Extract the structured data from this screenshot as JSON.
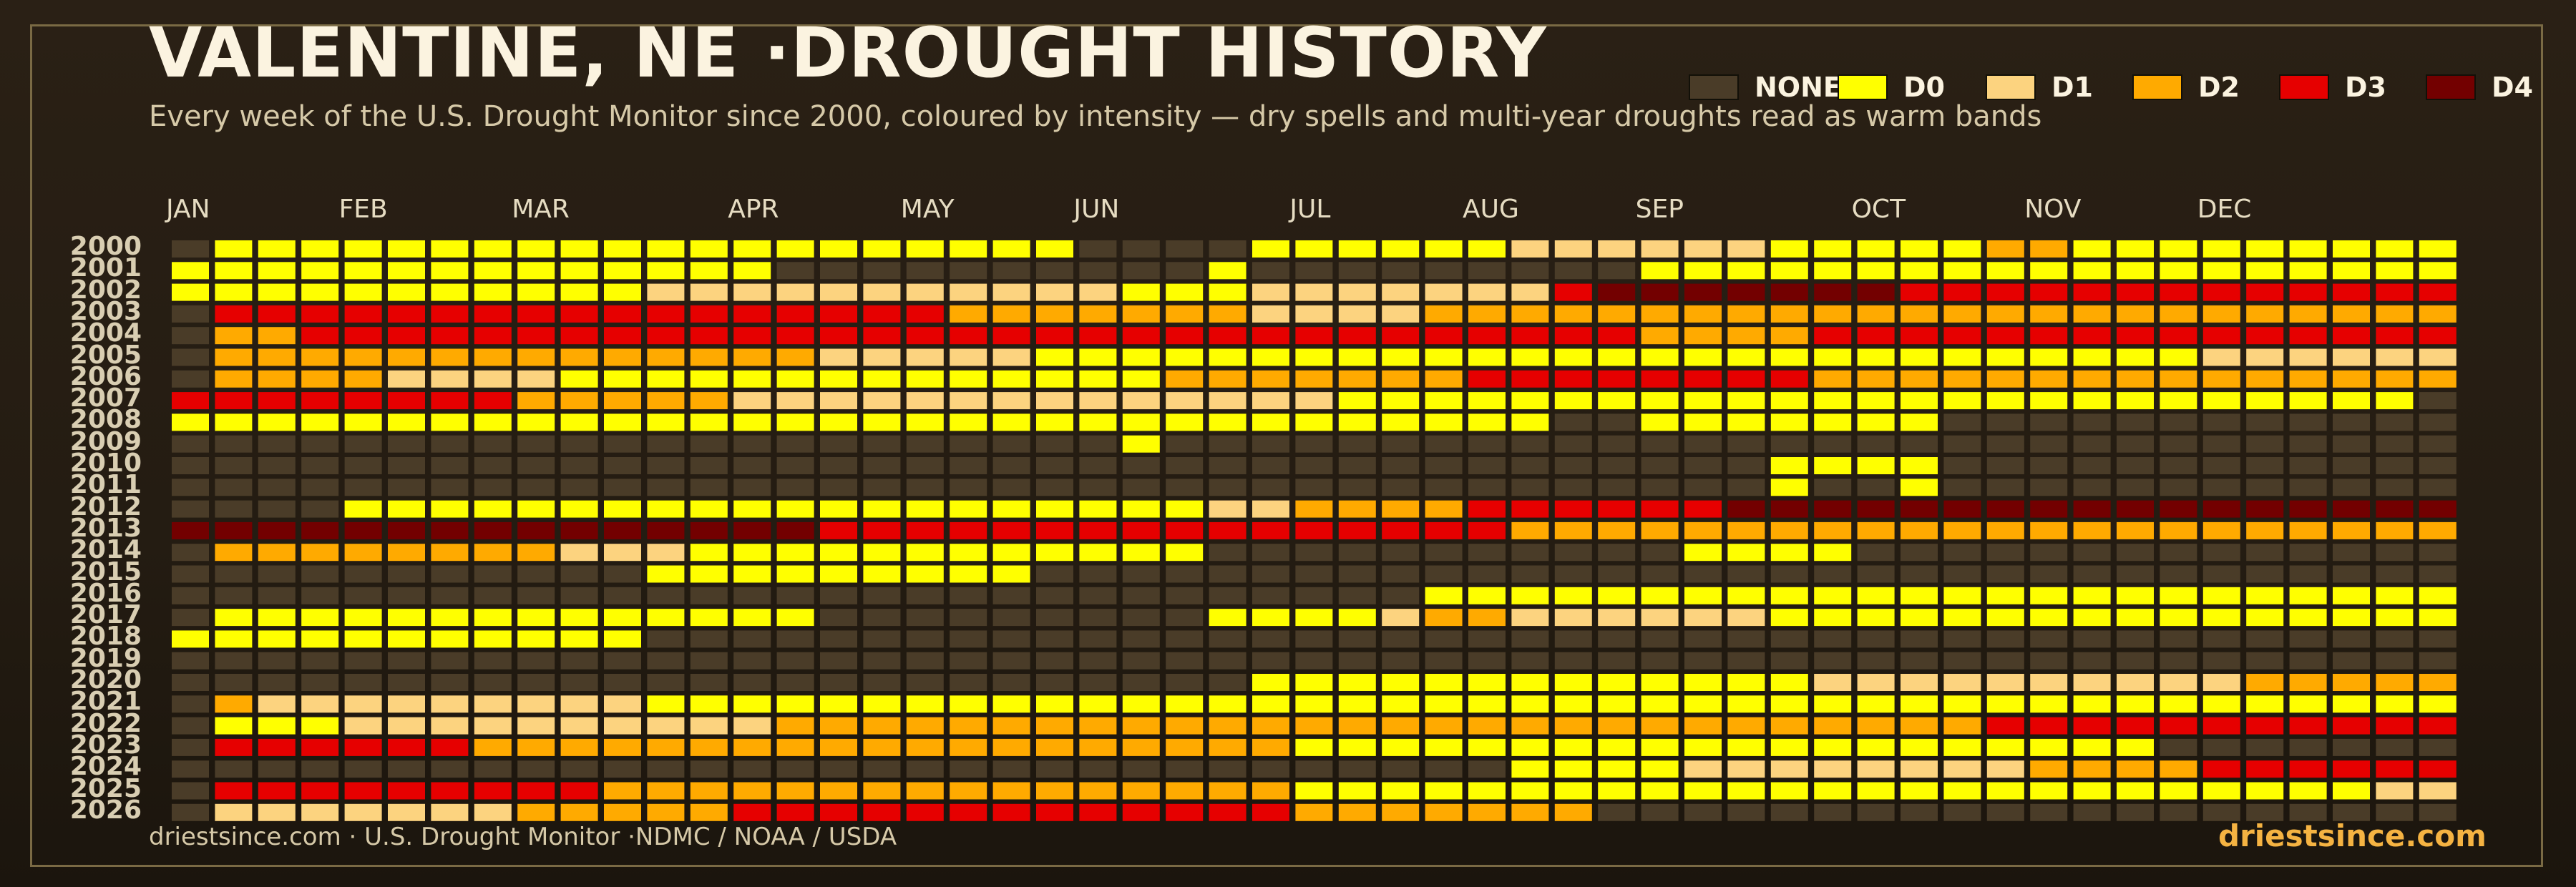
{
  "title": "VALENTINE, NE ·DROUGHT HISTORY",
  "subtitle": "Every week of the U.S. Drought Monitor since 2000, coloured by intensity — dry spells and multi-year droughts read as warm bands",
  "footer": {
    "source": "driestsince.com  · U.S. Drought Monitor ·NDMC / NOAA / USDA",
    "brand": "driestsince.com"
  },
  "colors": {
    "NONE": "#4a3c28",
    "D0": "#ffff00",
    "D1": "#fcd37f",
    "D2": "#ffaa00",
    "D3": "#e60000",
    "D4": "#730000"
  },
  "chart_data": {
    "type": "heatmap",
    "legend": [
      "NONE",
      "D0",
      "D1",
      "D2",
      "D3",
      "D4"
    ],
    "legend_placement": "top-right",
    "months": [
      "JAN",
      "FEB",
      "MAR",
      "APR",
      "MAY",
      "JUN",
      "JUL",
      "AUG",
      "SEP",
      "OCT",
      "NOV",
      "DEC"
    ],
    "month_start_week": [
      0,
      4,
      8,
      13,
      17,
      21,
      26,
      30,
      34,
      39,
      43,
      47
    ],
    "weeks": 53,
    "rows": [
      {
        "year": "2000",
        "runs": [
          [
            1,
            "NONE"
          ],
          [
            20,
            "D0"
          ],
          [
            4,
            "NONE"
          ],
          [
            6,
            "D0"
          ],
          [
            6,
            "D1"
          ],
          [
            5,
            "D0"
          ],
          [
            2,
            "D2"
          ],
          [
            9,
            "D0"
          ]
        ]
      },
      {
        "year": "2001",
        "runs": [
          [
            14,
            "D0"
          ],
          [
            10,
            "NONE"
          ],
          [
            1,
            "D0"
          ],
          [
            9,
            "NONE"
          ],
          [
            19,
            "D0"
          ]
        ]
      },
      {
        "year": "2002",
        "runs": [
          [
            11,
            "D0"
          ],
          [
            11,
            "D1"
          ],
          [
            3,
            "D0"
          ],
          [
            7,
            "D1"
          ],
          [
            1,
            "D3"
          ],
          [
            7,
            "D4"
          ],
          [
            13,
            "D3"
          ]
        ]
      },
      {
        "year": "2003",
        "runs": [
          [
            1,
            "NONE"
          ],
          [
            17,
            "D3"
          ],
          [
            7,
            "D2"
          ],
          [
            4,
            "D1"
          ],
          [
            24,
            "D2"
          ]
        ]
      },
      {
        "year": "2004",
        "runs": [
          [
            1,
            "NONE"
          ],
          [
            2,
            "D2"
          ],
          [
            31,
            "D3"
          ],
          [
            4,
            "D2"
          ],
          [
            15,
            "D3"
          ]
        ]
      },
      {
        "year": "2005",
        "runs": [
          [
            1,
            "NONE"
          ],
          [
            14,
            "D2"
          ],
          [
            5,
            "D1"
          ],
          [
            27,
            "D0"
          ],
          [
            6,
            "D1"
          ]
        ]
      },
      {
        "year": "2006",
        "runs": [
          [
            1,
            "NONE"
          ],
          [
            4,
            "D2"
          ],
          [
            4,
            "D1"
          ],
          [
            14,
            "D0"
          ],
          [
            7,
            "D2"
          ],
          [
            8,
            "D3"
          ],
          [
            15,
            "D2"
          ]
        ]
      },
      {
        "year": "2007",
        "runs": [
          [
            8,
            "D3"
          ],
          [
            5,
            "D2"
          ],
          [
            14,
            "D1"
          ],
          [
            25,
            "D0"
          ],
          [
            1,
            "NONE"
          ]
        ]
      },
      {
        "year": "2008",
        "runs": [
          [
            32,
            "D0"
          ],
          [
            2,
            "NONE"
          ],
          [
            7,
            "D0"
          ],
          [
            12,
            "NONE"
          ]
        ]
      },
      {
        "year": "2009",
        "runs": [
          [
            22,
            "NONE"
          ],
          [
            1,
            "D0"
          ],
          [
            30,
            "NONE"
          ]
        ]
      },
      {
        "year": "2010",
        "runs": [
          [
            37,
            "NONE"
          ],
          [
            4,
            "D0"
          ],
          [
            12,
            "NONE"
          ]
        ]
      },
      {
        "year": "2011",
        "runs": [
          [
            37,
            "NONE"
          ],
          [
            1,
            "D0"
          ],
          [
            2,
            "NONE"
          ],
          [
            1,
            "D0"
          ],
          [
            12,
            "NONE"
          ]
        ]
      },
      {
        "year": "2012",
        "runs": [
          [
            4,
            "NONE"
          ],
          [
            20,
            "D0"
          ],
          [
            2,
            "D1"
          ],
          [
            4,
            "D2"
          ],
          [
            6,
            "D3"
          ],
          [
            17,
            "D4"
          ]
        ]
      },
      {
        "year": "2013",
        "runs": [
          [
            15,
            "D4"
          ],
          [
            16,
            "D3"
          ],
          [
            1,
            "D2"
          ],
          [
            21,
            "D2"
          ]
        ]
      },
      {
        "year": "2014",
        "runs": [
          [
            1,
            "NONE"
          ],
          [
            8,
            "D2"
          ],
          [
            3,
            "D1"
          ],
          [
            12,
            "D0"
          ],
          [
            11,
            "NONE"
          ],
          [
            4,
            "D0"
          ],
          [
            14,
            "NONE"
          ]
        ]
      },
      {
        "year": "2015",
        "runs": [
          [
            11,
            "NONE"
          ],
          [
            9,
            "D0"
          ],
          [
            33,
            "NONE"
          ]
        ]
      },
      {
        "year": "2016",
        "runs": [
          [
            29,
            "NONE"
          ],
          [
            24,
            "D0"
          ]
        ]
      },
      {
        "year": "2017",
        "runs": [
          [
            1,
            "NONE"
          ],
          [
            14,
            "D0"
          ],
          [
            9,
            "NONE"
          ],
          [
            4,
            "D0"
          ],
          [
            1,
            "D1"
          ],
          [
            2,
            "D2"
          ],
          [
            6,
            "D1"
          ],
          [
            16,
            "D0"
          ]
        ]
      },
      {
        "year": "2018",
        "runs": [
          [
            11,
            "D0"
          ],
          [
            42,
            "NONE"
          ]
        ]
      },
      {
        "year": "2019",
        "runs": [
          [
            53,
            "NONE"
          ]
        ]
      },
      {
        "year": "2020",
        "runs": [
          [
            25,
            "NONE"
          ],
          [
            13,
            "D0"
          ],
          [
            10,
            "D1"
          ],
          [
            5,
            "D2"
          ]
        ]
      },
      {
        "year": "2021",
        "runs": [
          [
            1,
            "NONE"
          ],
          [
            1,
            "D2"
          ],
          [
            9,
            "D1"
          ],
          [
            16,
            "D0"
          ],
          [
            26,
            "D0"
          ]
        ]
      },
      {
        "year": "2022",
        "runs": [
          [
            1,
            "NONE"
          ],
          [
            3,
            "D0"
          ],
          [
            10,
            "D1"
          ],
          [
            28,
            "D2"
          ],
          [
            11,
            "D3"
          ]
        ]
      },
      {
        "year": "2023",
        "runs": [
          [
            1,
            "NONE"
          ],
          [
            6,
            "D3"
          ],
          [
            19,
            "D2"
          ],
          [
            20,
            "D0"
          ],
          [
            7,
            "NONE"
          ]
        ]
      },
      {
        "year": "2024",
        "runs": [
          [
            31,
            "NONE"
          ],
          [
            4,
            "D0"
          ],
          [
            8,
            "D1"
          ],
          [
            4,
            "D2"
          ],
          [
            6,
            "D3"
          ]
        ]
      },
      {
        "year": "2025",
        "runs": [
          [
            1,
            "NONE"
          ],
          [
            9,
            "D3"
          ],
          [
            6,
            "D2"
          ],
          [
            10,
            "D2"
          ],
          [
            25,
            "D0"
          ],
          [
            2,
            "D1"
          ]
        ]
      },
      {
        "year": "2026",
        "runs": [
          [
            1,
            "NONE"
          ],
          [
            7,
            "D1"
          ],
          [
            5,
            "D2"
          ],
          [
            13,
            "D3"
          ],
          [
            7,
            "D2"
          ],
          [
            20,
            "NONE"
          ]
        ]
      }
    ]
  }
}
